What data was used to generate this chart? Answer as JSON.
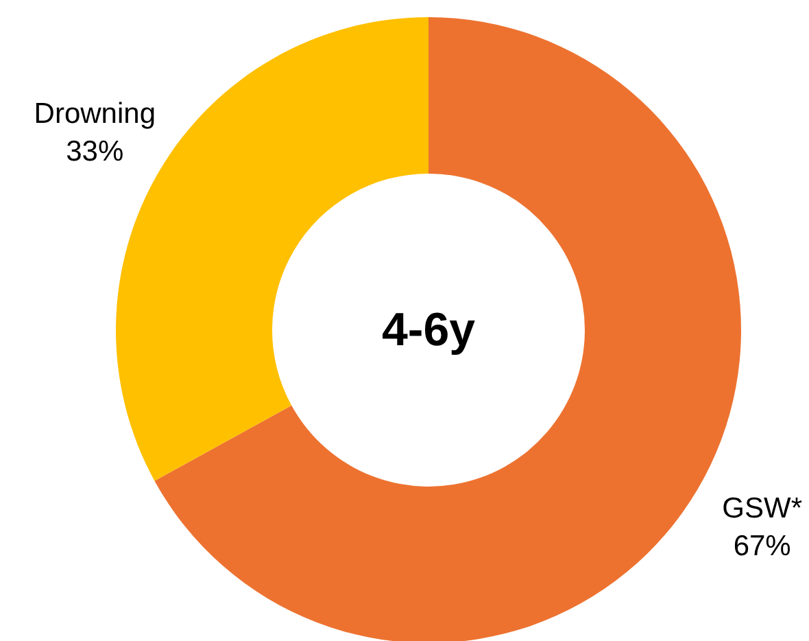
{
  "chart_data": {
    "type": "donut",
    "title": "4-6y",
    "categories": [
      "GSW*",
      "Drowning"
    ],
    "values": [
      67,
      33
    ],
    "colors": [
      "#ed7230",
      "#ffc000"
    ],
    "value_labels": [
      "67%",
      "33%"
    ]
  }
}
